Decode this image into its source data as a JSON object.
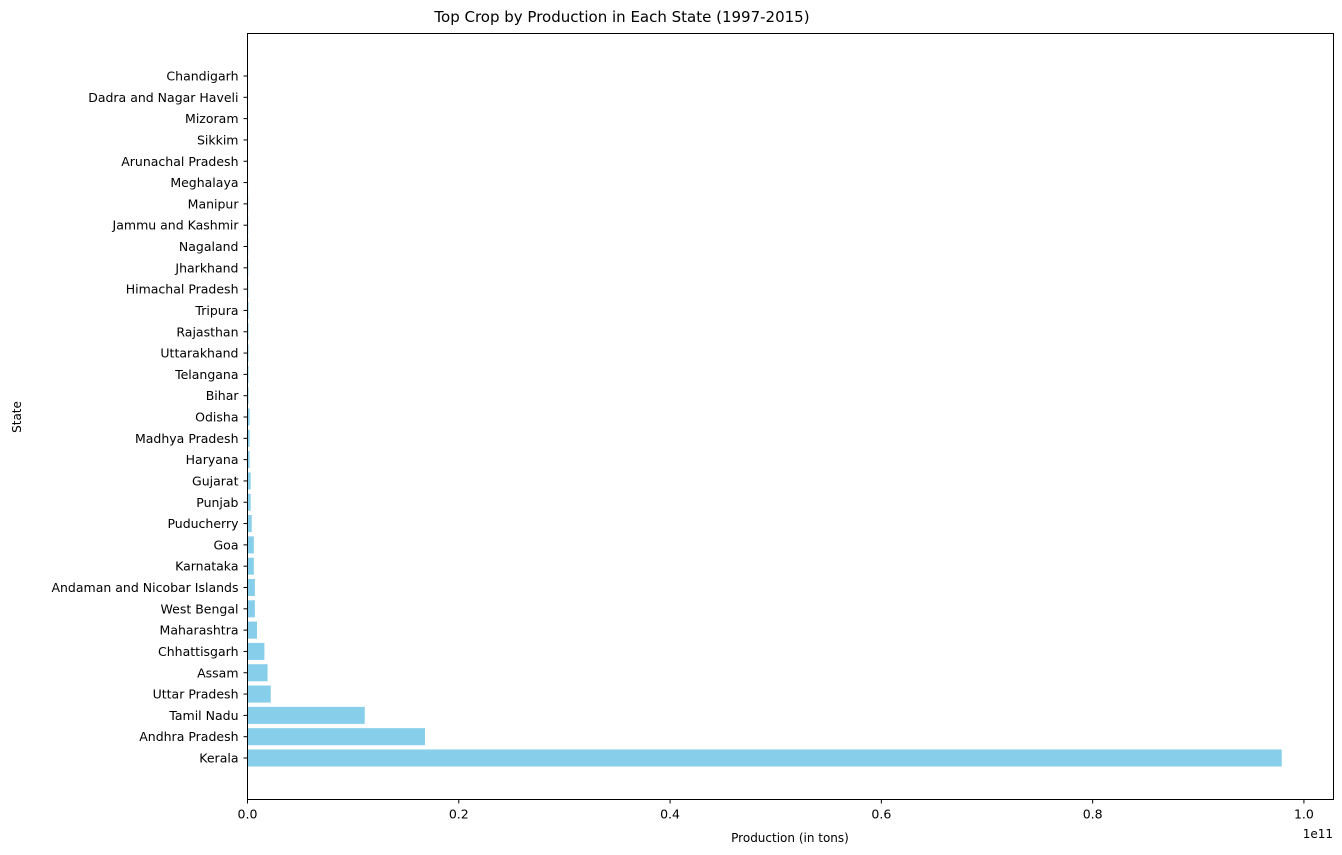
{
  "chart_data": {
    "type": "bar",
    "orientation": "horizontal",
    "title": "Top Crop by Production in Each State (1997-2015)",
    "xlabel": "Production (in tons)",
    "ylabel": "State",
    "x_scale_label": "1e11",
    "xlim": [
      0,
      1.028
    ],
    "x_ticks": [
      0.0,
      0.2,
      0.4,
      0.6,
      0.8,
      1.0
    ],
    "x_tick_labels": [
      "0.0",
      "0.2",
      "0.4",
      "0.6",
      "0.8",
      "1.0"
    ],
    "grid": false,
    "bar_color": "#87ceeb",
    "categories": [
      "Kerala",
      "Andhra Pradesh",
      "Tamil Nadu",
      "Uttar Pradesh",
      "Assam",
      "Chhattisgarh",
      "Maharashtra",
      "West Bengal",
      "Andaman and Nicobar Islands",
      "Karnataka",
      "Goa",
      "Puducherry",
      "Punjab",
      "Gujarat",
      "Haryana",
      "Madhya Pradesh",
      "Odisha",
      "Bihar",
      "Telangana ",
      "Uttarakhand",
      "Rajasthan",
      "Tripura",
      "Himachal Pradesh",
      "Jharkhand",
      "Nagaland",
      "Jammu and Kashmir ",
      "Manipur",
      "Meghalaya",
      "Arunachal Pradesh",
      "Sikkim",
      "Mizoram",
      "Dadra and Nagar Haveli",
      "Chandigarh"
    ],
    "values": [
      0.979,
      0.168,
      0.111,
      0.022,
      0.019,
      0.016,
      0.009,
      0.007,
      0.007,
      0.006,
      0.006,
      0.004,
      0.003,
      0.003,
      0.002,
      0.002,
      0.002,
      0.001,
      0.001,
      0.001,
      0.001,
      0.001,
      0.0008,
      0.0008,
      0.0007,
      0.0007,
      0.0006,
      0.0005,
      0.0004,
      0.0003,
      0.0002,
      0.0001,
      0.0001
    ]
  }
}
